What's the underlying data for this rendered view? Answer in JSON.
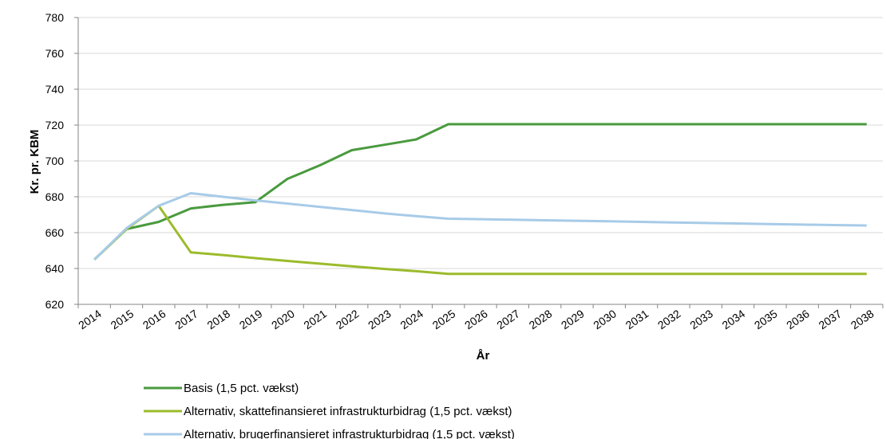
{
  "chart_data": {
    "type": "line",
    "title": "",
    "xlabel": "År",
    "ylabel": "Kr. pr. KBM",
    "ylim": [
      620,
      780
    ],
    "y_ticks": [
      620,
      640,
      660,
      680,
      700,
      720,
      740,
      760,
      780
    ],
    "categories": [
      "2014",
      "2015",
      "2016",
      "2017",
      "2018",
      "2019",
      "2020",
      "2021",
      "2022",
      "2023",
      "2024",
      "2025",
      "2026",
      "2027",
      "2028",
      "2029",
      "2030",
      "2031",
      "2032",
      "2033",
      "2034",
      "2035",
      "2036",
      "2037",
      "2038"
    ],
    "grid": "horizontal",
    "legend_position": "bottom",
    "series": [
      {
        "name": "Basis (1,5 pct. vækst)",
        "color": "#4a9a3f",
        "values": [
          645,
          662,
          666,
          673.5,
          675.5,
          677,
          690,
          697.5,
          706,
          709,
          712,
          720.5,
          720.5,
          720.5,
          720.5,
          720.5,
          720.5,
          720.5,
          720.5,
          720.5,
          720.5,
          720.5,
          720.5,
          720.5,
          720.5
        ]
      },
      {
        "name": "Alternativ, skattefinansieret infrastrukturbidrag (1,5 pct. vækst)",
        "color": "#9bbb2b",
        "values": [
          645,
          662,
          675,
          649,
          647.5,
          645.8,
          644.2,
          642.7,
          641.2,
          639.8,
          638.5,
          637,
          637,
          637,
          637,
          637,
          637,
          637,
          637,
          637,
          637,
          637,
          637,
          637,
          637
        ]
      },
      {
        "name": "Alternativ, brugerfinansieret infrastrukturbidrag (1,5 pct. vækst)",
        "color": "#a7cbe8",
        "values": [
          645,
          662.5,
          675,
          682,
          680,
          678,
          676.2,
          674.4,
          672.6,
          670.8,
          669.2,
          667.8,
          667.5,
          667.2,
          666.9,
          666.6,
          666.3,
          666,
          665.7,
          665.4,
          665.1,
          664.8,
          664.5,
          664.2,
          664
        ]
      }
    ]
  }
}
